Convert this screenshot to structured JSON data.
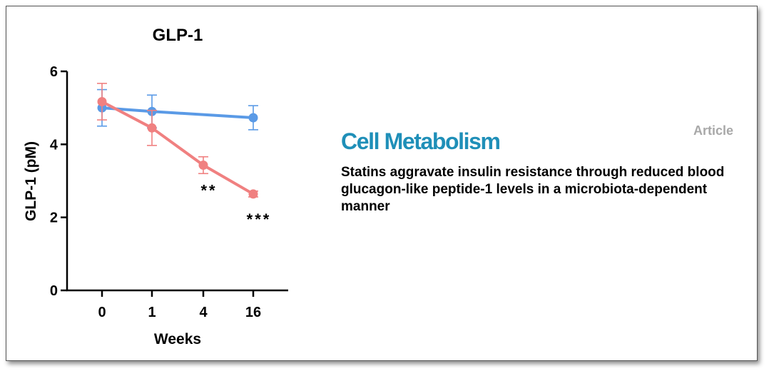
{
  "chart_data": {
    "type": "line",
    "title": "GLP-1",
    "xlabel": "Weeks",
    "ylabel": "GLP-1 (pM)",
    "categories": [
      "0",
      "1",
      "4",
      "16"
    ],
    "ylim": [
      0,
      6
    ],
    "yticks": [
      0,
      2,
      4,
      6
    ],
    "grid": false,
    "series": [
      {
        "color": "#5a9ae6",
        "values": [
          5.0,
          4.9,
          null,
          4.73
        ],
        "errors": [
          0.5,
          0.45,
          null,
          0.33
        ]
      },
      {
        "color": "#f08080",
        "values": [
          5.17,
          4.45,
          3.43,
          2.64
        ],
        "errors": [
          0.5,
          0.48,
          0.23,
          0.08
        ]
      }
    ],
    "annotations": [
      {
        "category": "4",
        "text": "**"
      },
      {
        "category": "16",
        "text": "***"
      }
    ]
  },
  "publication": {
    "journal": "Cell Metabolism",
    "journal_color": "#1f8fb8",
    "type_label": "Article",
    "type_label_color": "#a8a8a8",
    "title": "Statins aggravate insulin resistance through reduced blood glucagon-like peptide-1 levels in a microbiota-dependent manner"
  }
}
